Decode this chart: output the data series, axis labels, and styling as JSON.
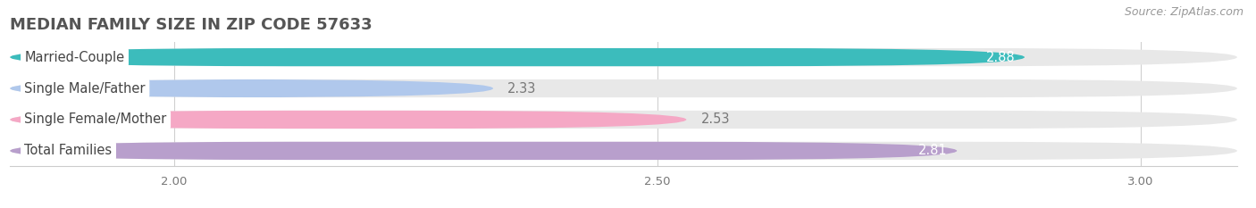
{
  "title": "MEDIAN FAMILY SIZE IN ZIP CODE 57633",
  "source": "Source: ZipAtlas.com",
  "categories": [
    "Married-Couple",
    "Single Male/Father",
    "Single Female/Mother",
    "Total Families"
  ],
  "values": [
    2.88,
    2.33,
    2.53,
    2.81
  ],
  "bar_colors": [
    "#3cbcbc",
    "#b0c8ec",
    "#f5a8c5",
    "#b89fcc"
  ],
  "bar_bg_color": "#e8e8e8",
  "value_inside": [
    true,
    false,
    false,
    true
  ],
  "value_color_inside": "#ffffff",
  "value_color_outside": "#777777",
  "label_color": "#444444",
  "title_color": "#555555",
  "source_color": "#999999",
  "background_color": "#ffffff",
  "xlim_min": 1.83,
  "xlim_max": 3.1,
  "xticks": [
    2.0,
    2.5,
    3.0
  ],
  "bar_height": 0.58,
  "label_fontsize": 10.5,
  "value_fontsize": 10.5,
  "title_fontsize": 13,
  "source_fontsize": 9
}
